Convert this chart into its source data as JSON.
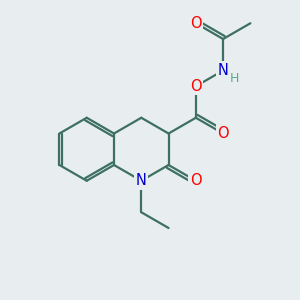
{
  "bg_color": "#e8edf0",
  "bond_color": "#3d7060",
  "atom_colors": {
    "O": "#ff0000",
    "N": "#0000cc",
    "H": "#5aaa90",
    "C": "#3d7060"
  },
  "line_width": 1.6,
  "font_size": 10.5,
  "figsize": [
    3.0,
    3.0
  ],
  "dpi": 100
}
